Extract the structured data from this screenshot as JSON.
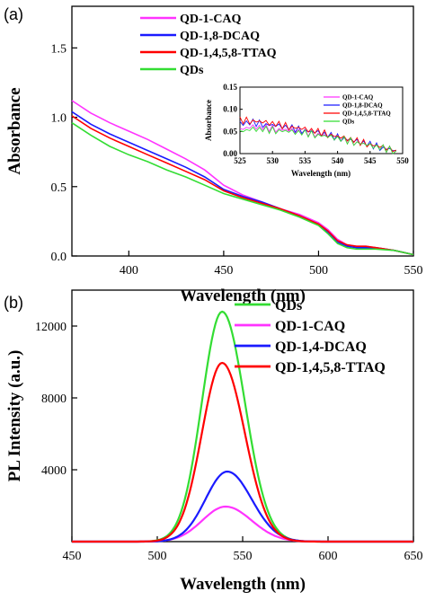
{
  "chart_data": [
    {
      "panel_label": "(a)",
      "type": "line",
      "xlabel": "Wavelength (nm)",
      "ylabel": "Absorbance",
      "xlim": [
        370,
        550
      ],
      "ylim": [
        0.0,
        1.8
      ],
      "xticks": [
        "400",
        "450",
        "500",
        "550"
      ],
      "yticks": [
        "0.0",
        "0.5",
        "1.0",
        "1.5"
      ],
      "legend_position": "top-left",
      "series": [
        {
          "name": "QD-1-CAQ",
          "color": "#ff33ff",
          "x": [
            370,
            380,
            390,
            400,
            410,
            420,
            430,
            440,
            450,
            460,
            470,
            480,
            490,
            500,
            505,
            510,
            515,
            520,
            525,
            530,
            540,
            550
          ],
          "y": [
            1.12,
            1.03,
            0.96,
            0.9,
            0.84,
            0.77,
            0.7,
            0.62,
            0.51,
            0.44,
            0.39,
            0.34,
            0.3,
            0.24,
            0.19,
            0.12,
            0.08,
            0.07,
            0.07,
            0.06,
            0.04,
            0.01
          ]
        },
        {
          "name": "QD-1,8-DCAQ",
          "color": "#1a1aff",
          "x": [
            370,
            380,
            390,
            400,
            410,
            420,
            430,
            440,
            450,
            460,
            470,
            480,
            490,
            500,
            505,
            510,
            515,
            520,
            525,
            530,
            540,
            550
          ],
          "y": [
            1.04,
            0.95,
            0.88,
            0.82,
            0.76,
            0.7,
            0.64,
            0.57,
            0.48,
            0.43,
            0.39,
            0.34,
            0.29,
            0.23,
            0.17,
            0.1,
            0.07,
            0.06,
            0.06,
            0.06,
            0.04,
            0.01
          ]
        },
        {
          "name": "QD-1,4,5,8-TTAQ",
          "color": "#ff0000",
          "x": [
            370,
            380,
            390,
            400,
            410,
            420,
            430,
            440,
            450,
            460,
            470,
            480,
            490,
            500,
            505,
            510,
            515,
            520,
            525,
            530,
            540,
            550
          ],
          "y": [
            1.01,
            0.92,
            0.85,
            0.79,
            0.73,
            0.67,
            0.61,
            0.55,
            0.47,
            0.42,
            0.38,
            0.34,
            0.29,
            0.23,
            0.18,
            0.11,
            0.08,
            0.07,
            0.07,
            0.06,
            0.04,
            0.01
          ]
        },
        {
          "name": "QDs",
          "color": "#33dd33",
          "x": [
            370,
            380,
            390,
            400,
            410,
            420,
            430,
            440,
            450,
            460,
            470,
            480,
            490,
            500,
            505,
            510,
            515,
            520,
            525,
            530,
            540,
            550
          ],
          "y": [
            0.96,
            0.87,
            0.79,
            0.73,
            0.68,
            0.62,
            0.57,
            0.51,
            0.45,
            0.41,
            0.37,
            0.33,
            0.28,
            0.22,
            0.16,
            0.09,
            0.06,
            0.05,
            0.05,
            0.05,
            0.04,
            0.01
          ]
        }
      ],
      "inset": {
        "type": "line",
        "xlabel": "Wavelength (nm)",
        "ylabel": "Absorbance",
        "xlim": [
          525,
          550
        ],
        "ylim": [
          0.0,
          0.15
        ],
        "xticks": [
          "525",
          "530",
          "535",
          "540",
          "545",
          "550"
        ],
        "yticks": [
          "0.00",
          "0.05",
          "0.10",
          "0.15"
        ],
        "legend_position": "top-right",
        "series": [
          {
            "name": "QD-1-CAQ",
            "color": "#ff33ff",
            "x": [
              525,
              527,
              529,
              531,
              533,
              535,
              537,
              539,
              541,
              543,
              545,
              547,
              549
            ],
            "y": [
              0.055,
              0.06,
              0.058,
              0.055,
              0.052,
              0.048,
              0.044,
              0.038,
              0.032,
              0.025,
              0.018,
              0.012,
              0.006
            ]
          },
          {
            "name": "QD-1,8-DCAQ",
            "color": "#1a1aff",
            "x": [
              525,
              527,
              529,
              531,
              533,
              535,
              537,
              539,
              541,
              543,
              545,
              547,
              549
            ],
            "y": [
              0.068,
              0.07,
              0.066,
              0.062,
              0.057,
              0.052,
              0.047,
              0.04,
              0.034,
              0.027,
              0.02,
              0.013,
              0.007
            ]
          },
          {
            "name": "QD-1,4,5,8-TTAQ",
            "color": "#ff0000",
            "x": [
              525,
              527,
              529,
              531,
              533,
              535,
              537,
              539,
              541,
              543,
              545,
              547,
              549
            ],
            "y": [
              0.075,
              0.074,
              0.07,
              0.065,
              0.06,
              0.055,
              0.049,
              0.042,
              0.035,
              0.028,
              0.021,
              0.014,
              0.008
            ]
          },
          {
            "name": "QDs",
            "color": "#33dd33",
            "x": [
              525,
              527,
              529,
              531,
              533,
              535,
              537,
              539,
              541,
              543,
              545,
              547,
              549
            ],
            "y": [
              0.05,
              0.055,
              0.054,
              0.052,
              0.049,
              0.046,
              0.042,
              0.037,
              0.031,
              0.025,
              0.018,
              0.012,
              0.006
            ]
          }
        ]
      }
    },
    {
      "panel_label": "(b)",
      "type": "line",
      "xlabel": "Wavelength (nm)",
      "ylabel": "PL Intensity (a.u.)",
      "xlim": [
        450,
        650
      ],
      "ylim": [
        0,
        14000
      ],
      "xticks": [
        "450",
        "500",
        "550",
        "600",
        "650"
      ],
      "yticks": [
        "4000",
        "8000",
        "12000"
      ],
      "legend_position": "top-right",
      "series": [
        {
          "name": "QDs",
          "color": "#33dd33",
          "peak_x": 538,
          "peak_y": 12800,
          "fwhm": 28
        },
        {
          "name": "QD-1-CAQ",
          "color": "#ff33ff",
          "peak_x": 540,
          "peak_y": 1950,
          "fwhm": 32
        },
        {
          "name": "QD-1,4-DCAQ",
          "color": "#1a1aff",
          "peak_x": 541,
          "peak_y": 3900,
          "fwhm": 30
        },
        {
          "name": "QD-1,4,5,8-TTAQ",
          "color": "#ff0000",
          "peak_x": 538,
          "peak_y": 9950,
          "fwhm": 28
        }
      ]
    }
  ]
}
